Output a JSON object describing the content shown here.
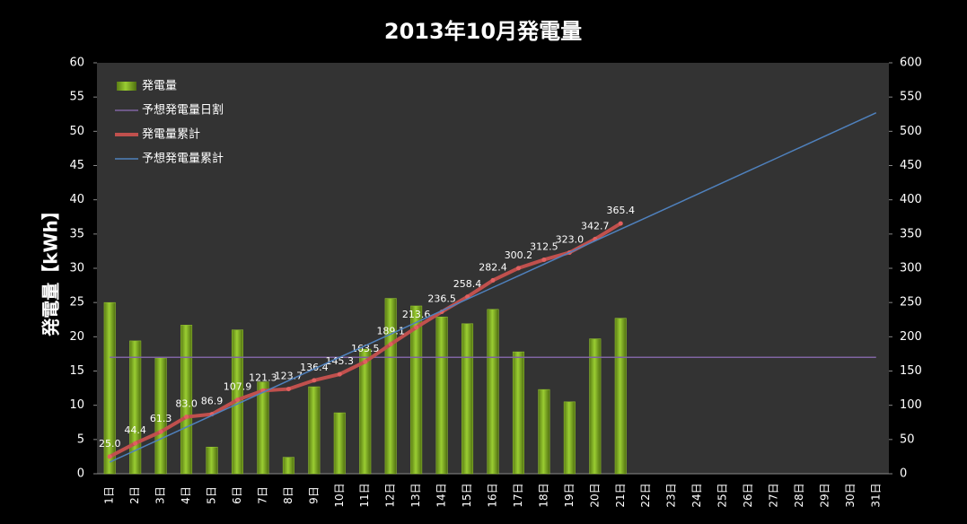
{
  "chart_data": {
    "type": "bar",
    "title": "2013年10月発電量",
    "ylabel": "発電量【kWh】",
    "categories": [
      "1日",
      "2日",
      "3日",
      "4日",
      "5日",
      "6日",
      "7日",
      "8日",
      "9日",
      "10日",
      "11日",
      "12日",
      "13日",
      "14日",
      "15日",
      "16日",
      "17日",
      "18日",
      "19日",
      "20日",
      "21日",
      "22日",
      "23日",
      "24日",
      "25日",
      "26日",
      "27日",
      "28日",
      "29日",
      "30日",
      "31日"
    ],
    "series": [
      {
        "name": "発電量",
        "type": "bar",
        "color": "#9acd32",
        "values": [
          25.0,
          19.4,
          16.9,
          21.7,
          3.9,
          21.0,
          13.4,
          2.4,
          12.7,
          8.9,
          18.2,
          25.6,
          24.5,
          22.9,
          21.9,
          24.0,
          17.8,
          12.3,
          10.5,
          19.7,
          22.7,
          null,
          null,
          null,
          null,
          null,
          null,
          null,
          null,
          null,
          null
        ]
      },
      {
        "name": "予想発電量日割",
        "type": "line",
        "color": "#8064a2",
        "values": [
          17,
          17,
          17,
          17,
          17,
          17,
          17,
          17,
          17,
          17,
          17,
          17,
          17,
          17,
          17,
          17,
          17,
          17,
          17,
          17,
          17,
          17,
          17,
          17,
          17,
          17,
          17,
          17,
          17,
          17,
          17
        ]
      },
      {
        "name": "発電量累計",
        "type": "line",
        "axis": "y2",
        "color": "#c0504d",
        "markers": true,
        "values": [
          25.0,
          44.4,
          61.3,
          83.0,
          86.9,
          107.9,
          121.3,
          123.7,
          136.4,
          145.3,
          163.5,
          189.1,
          213.6,
          236.5,
          258.4,
          282.4,
          300.2,
          312.5,
          323.0,
          342.7,
          365.4,
          null,
          null,
          null,
          null,
          null,
          null,
          null,
          null,
          null,
          null
        ],
        "value_labels": [
          "25.0",
          "44.4",
          "61.3",
          "83.0",
          "86.9",
          "107.9",
          "121.3",
          "123.7",
          "136.4",
          "145.3",
          "163.5",
          "189.1",
          "213.6",
          "236.5",
          "258.4",
          "282.4",
          "300.2",
          "312.5",
          "323.0",
          "342.7",
          "365.4",
          null,
          null,
          null,
          null,
          null,
          null,
          null,
          null,
          null,
          null
        ]
      },
      {
        "name": "予想発電量累計",
        "type": "line",
        "axis": "y2",
        "color": "#4f81bd",
        "values": [
          17,
          34,
          51,
          68,
          85,
          102,
          119,
          136,
          153,
          170,
          187,
          204,
          221,
          238,
          255,
          272,
          289,
          306,
          323,
          340,
          357,
          374,
          391,
          408,
          425,
          442,
          459,
          476,
          493,
          510,
          527
        ]
      }
    ],
    "ylim": [
      0,
      60
    ],
    "yticks": [
      0,
      5,
      10,
      15,
      20,
      25,
      30,
      35,
      40,
      45,
      50,
      55,
      60
    ],
    "y2lim": [
      0,
      600
    ],
    "y2ticks": [
      0,
      50,
      100,
      150,
      200,
      250,
      300,
      350,
      400,
      450,
      500,
      550,
      600
    ],
    "grid": false,
    "legend": "upper left"
  }
}
